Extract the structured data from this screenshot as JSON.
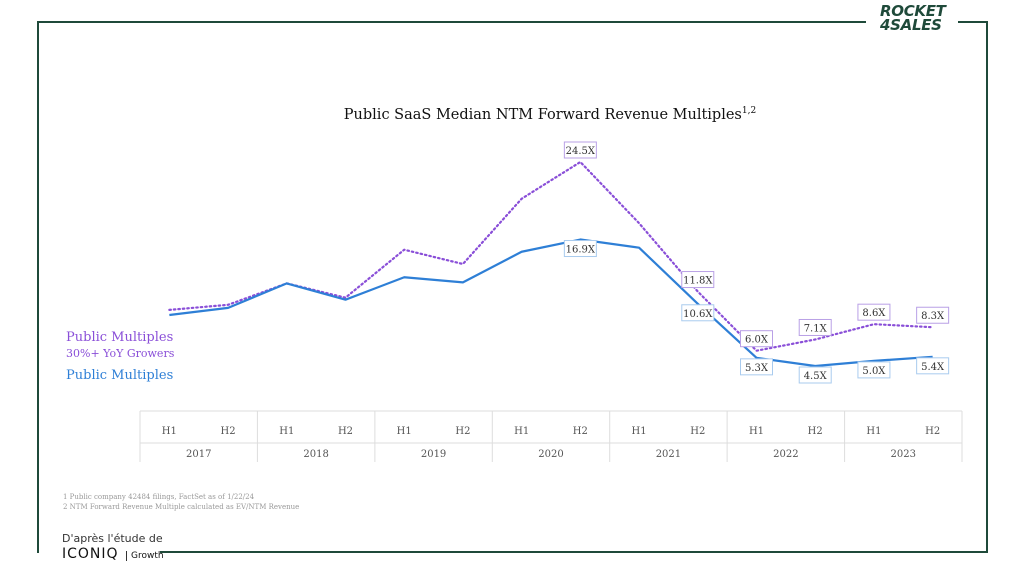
{
  "brand": {
    "line1": "ROCKET",
    "line2": "4SALES"
  },
  "chart_data": {
    "type": "line",
    "title": "Public SaaS Median NTM Forward Revenue Multiples",
    "title_superscript": "1,2",
    "periods": [
      "H1",
      "H2",
      "H1",
      "H2",
      "H1",
      "H2",
      "H1",
      "H2",
      "H1",
      "H2",
      "H1",
      "H2",
      "H1",
      "H2"
    ],
    "years": [
      "2017",
      "2018",
      "2019",
      "2020",
      "2021",
      "2022",
      "2023"
    ],
    "series": [
      {
        "name": "Public Multiples 30%+ YoY Growers",
        "color": "#8a4fd8",
        "style": "dotted",
        "values": [
          10.0,
          10.5,
          12.6,
          11.2,
          15.9,
          14.5,
          20.9,
          24.5,
          18.5,
          11.8,
          6.0,
          7.1,
          8.6,
          8.3
        ],
        "labels": [
          "",
          "",
          "",
          "",
          "",
          "",
          "",
          "24.5X",
          "",
          "11.8X",
          "6.0X",
          "7.1X",
          "8.6X",
          "8.3X"
        ]
      },
      {
        "name": "Public Multiples",
        "color": "#2e7fd6",
        "style": "solid",
        "values": [
          9.5,
          10.2,
          12.6,
          11.0,
          13.2,
          12.7,
          15.7,
          16.9,
          16.1,
          10.6,
          5.3,
          4.5,
          5.0,
          5.4
        ],
        "labels": [
          "",
          "",
          "",
          "",
          "",
          "",
          "",
          "16.9X",
          "",
          "10.6X",
          "5.3X",
          "4.5X",
          "5.0X",
          "5.4X"
        ]
      }
    ]
  },
  "legend": {
    "purple_line1": "Public Multiples",
    "purple_line2": "30%+ YoY Growers",
    "blue": "Public Multiples"
  },
  "footnotes": {
    "note1": "1 Public company 42484 filings, FactSet as of 1/22/24",
    "note2": "2 NTM Forward Revenue Multiple calculated as EV/NTM Revenue"
  },
  "source": {
    "prefix": "D'après l'étude de",
    "brand": "ICONIQ",
    "suffix": "Growth"
  }
}
